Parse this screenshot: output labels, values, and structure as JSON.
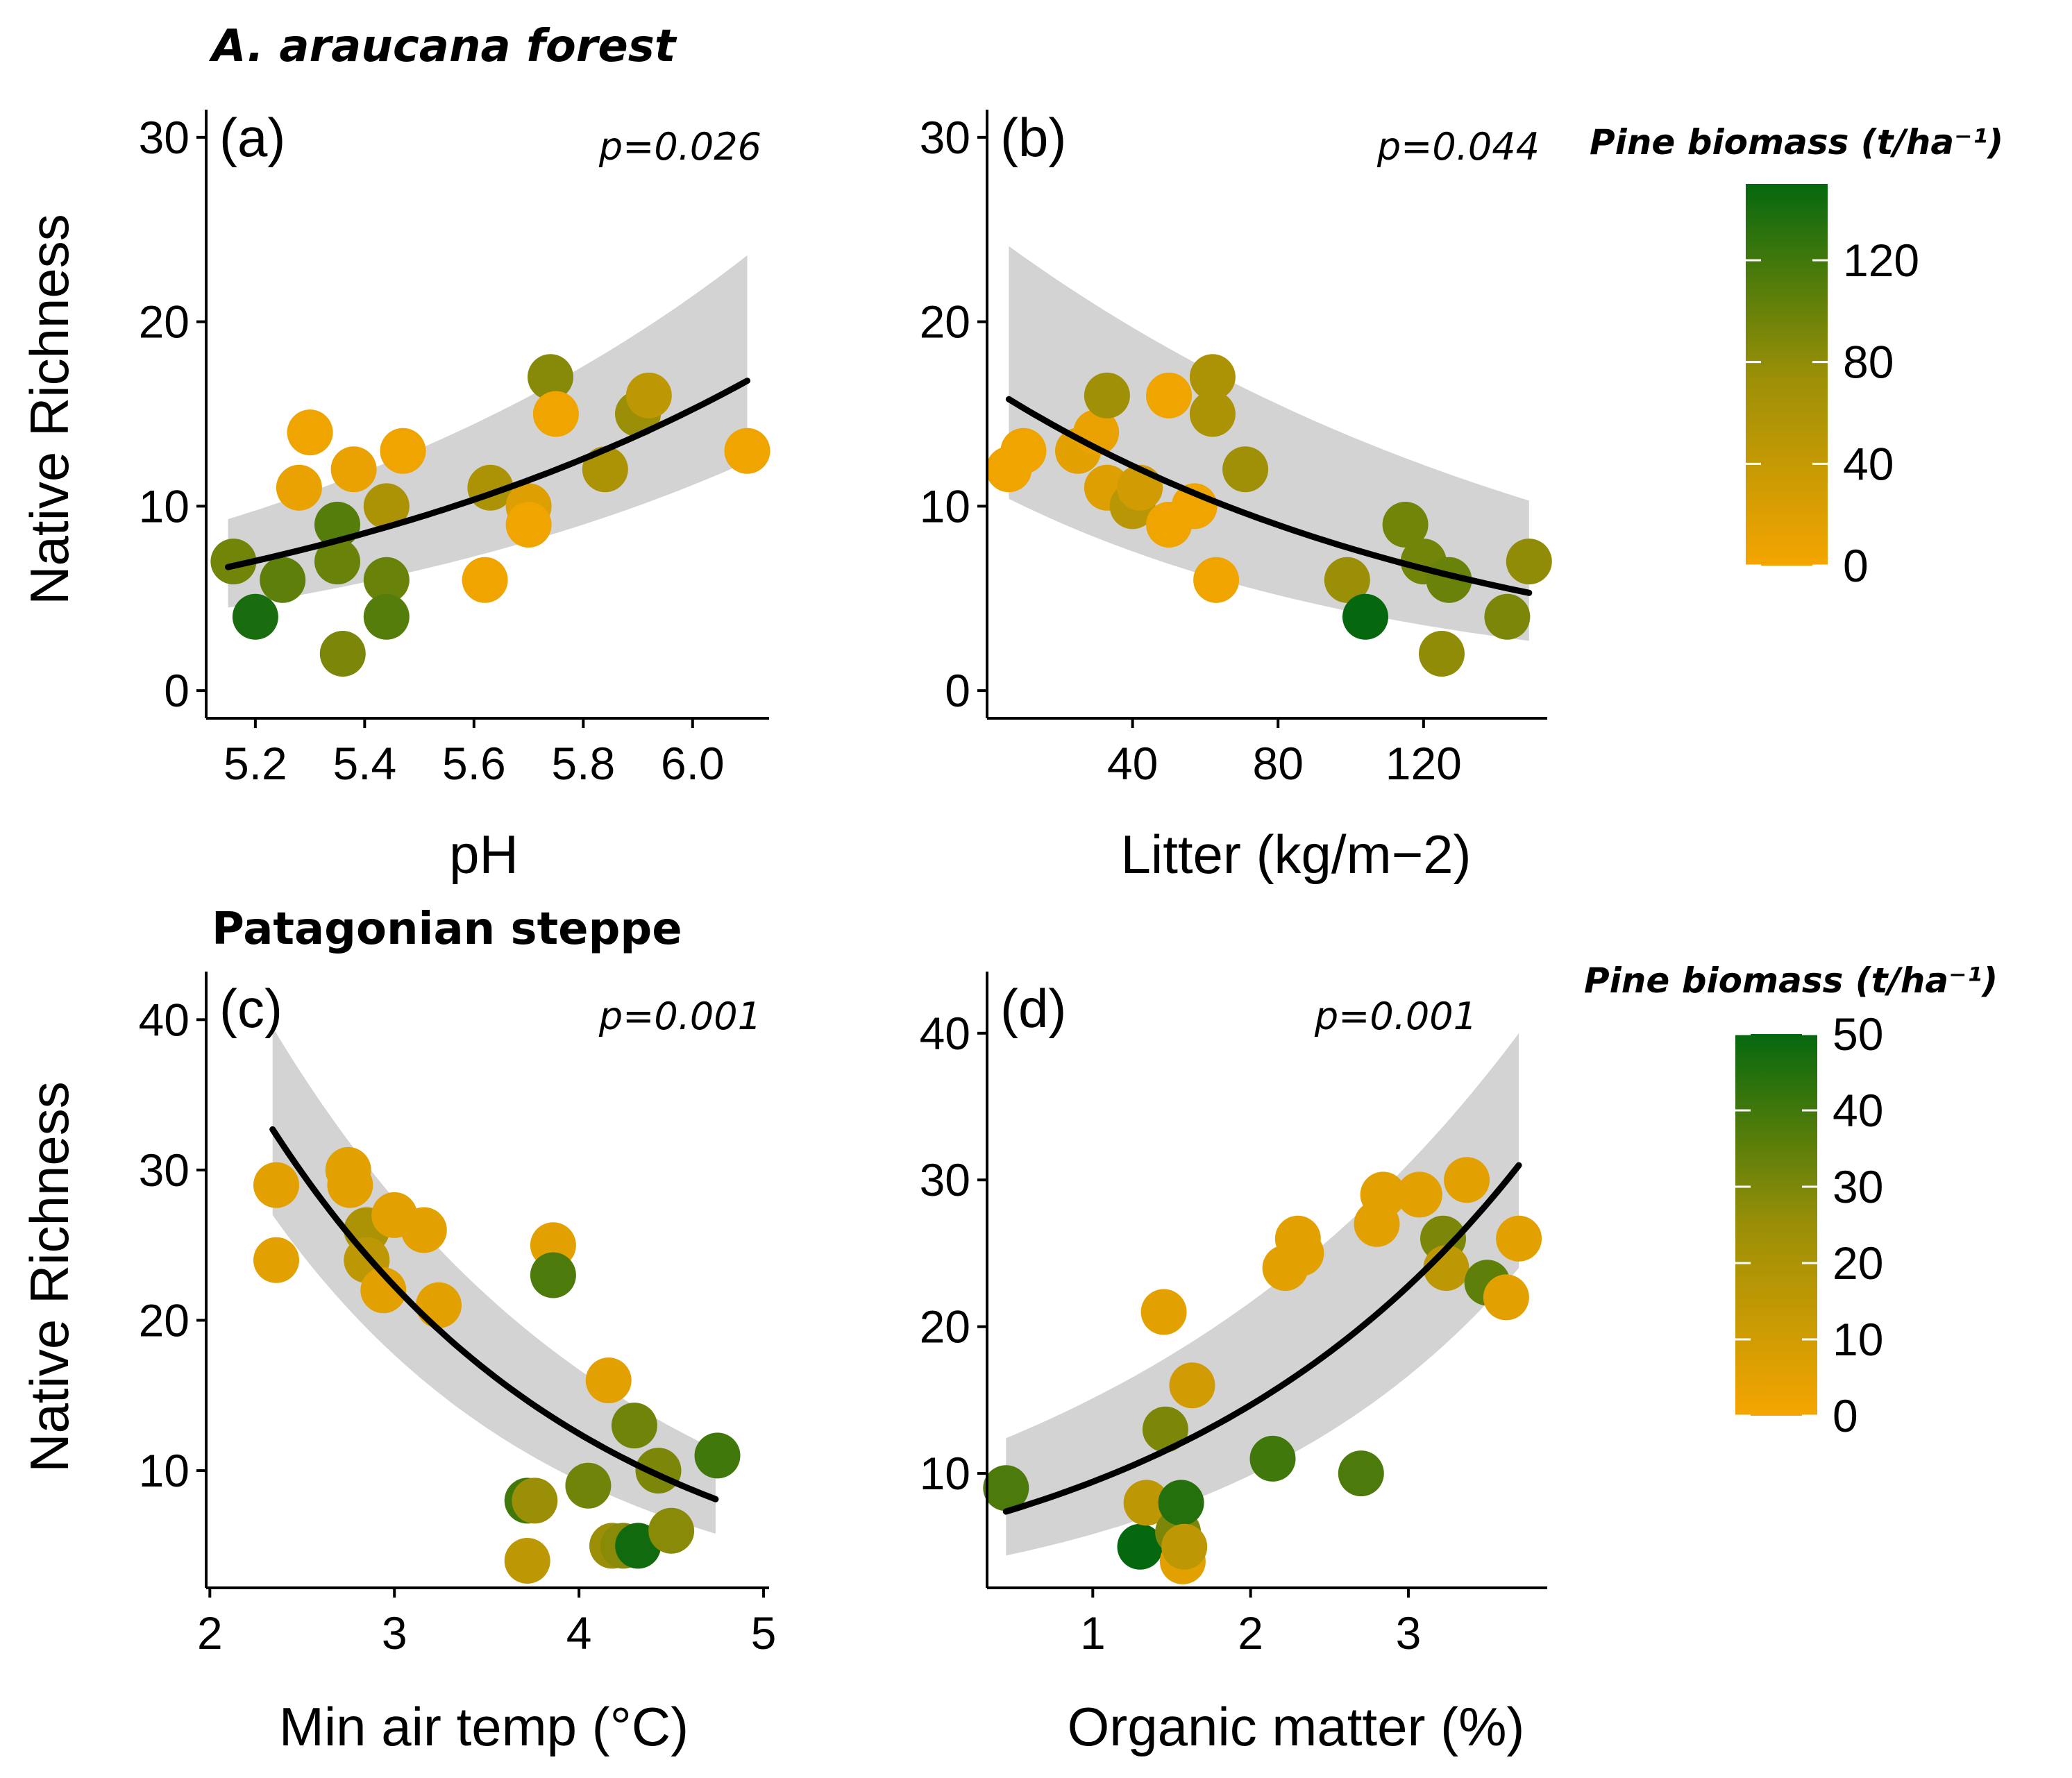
{
  "colors": {
    "low": "#f5a500",
    "mid": "#9a8f07",
    "high": "#05680f",
    "ribbon": "#d3d3d3",
    "line": "#000000"
  },
  "legends": [
    {
      "title": "Pine biomass (t/ha⁻¹)",
      "min": 0,
      "max": 150,
      "ticks": [
        0,
        40,
        80,
        120
      ]
    },
    {
      "title": "Pine biomass (t/ha⁻¹)",
      "min": 0,
      "max": 50,
      "ticks": [
        0,
        10,
        20,
        30,
        40,
        50
      ]
    }
  ],
  "chart_data": [
    {
      "type": "scatter",
      "section_title": "A. araucana forest",
      "panel": "(a)",
      "p_value": "p=0.026",
      "xlabel": "pH",
      "ylabel": "Native Richness",
      "xlim": [
        5.11,
        6.14
      ],
      "ylim": [
        -1.5,
        31.5
      ],
      "xticks": [
        5.2,
        5.4,
        5.6,
        5.8,
        6.0
      ],
      "xtick_labels": [
        "5.2",
        "5.4",
        "5.6",
        "5.8",
        "6.0"
      ],
      "yticks": [
        0,
        10,
        20,
        30
      ],
      "legend": 0,
      "points": [
        {
          "x": 5.16,
          "y": 7,
          "c": 95
        },
        {
          "x": 5.2,
          "y": 4,
          "c": 140
        },
        {
          "x": 5.25,
          "y": 6,
          "c": 105
        },
        {
          "x": 5.28,
          "y": 11,
          "c": 10
        },
        {
          "x": 5.3,
          "y": 14,
          "c": 5
        },
        {
          "x": 5.35,
          "y": 9,
          "c": 110
        },
        {
          "x": 5.35,
          "y": 7,
          "c": 100
        },
        {
          "x": 5.36,
          "y": 2,
          "c": 90
        },
        {
          "x": 5.38,
          "y": 12,
          "c": 10
        },
        {
          "x": 5.44,
          "y": 10,
          "c": 60
        },
        {
          "x": 5.44,
          "y": 6,
          "c": 100
        },
        {
          "x": 5.44,
          "y": 4,
          "c": 110
        },
        {
          "x": 5.47,
          "y": 13,
          "c": 5
        },
        {
          "x": 5.62,
          "y": 6,
          "c": 5
        },
        {
          "x": 5.63,
          "y": 11,
          "c": 60
        },
        {
          "x": 5.7,
          "y": 10,
          "c": 20
        },
        {
          "x": 5.7,
          "y": 9,
          "c": 5
        },
        {
          "x": 5.74,
          "y": 17,
          "c": 85
        },
        {
          "x": 5.75,
          "y": 15,
          "c": 5
        },
        {
          "x": 5.84,
          "y": 12,
          "c": 60
        },
        {
          "x": 5.9,
          "y": 15,
          "c": 75
        },
        {
          "x": 5.92,
          "y": 16,
          "c": 45
        },
        {
          "x": 6.1,
          "y": 13,
          "c": 5
        }
      ],
      "fit": {
        "form": "exp",
        "x0": 5.15,
        "x1": 6.1,
        "y0": 6.7,
        "y1": 16.8,
        "lo0": 4.5,
        "lo1": 12.4,
        "hi0": 9.3,
        "hi1": 23.6
      }
    },
    {
      "type": "scatter",
      "panel": "(b)",
      "p_value": "p=0.044",
      "xlabel": "Litter (kg/m−2)",
      "ylabel": "",
      "xlim": [
        0,
        154
      ],
      "ylim": [
        -1.5,
        31.5
      ],
      "xticks": [
        40,
        80,
        120
      ],
      "xtick_labels": [
        "40",
        "80",
        "120"
      ],
      "yticks": [
        0,
        10,
        20,
        30
      ],
      "legend": 0,
      "points": [
        {
          "x": 6,
          "y": 12,
          "c": 5
        },
        {
          "x": 10,
          "y": 13,
          "c": 5
        },
        {
          "x": 25,
          "y": 13,
          "c": 15
        },
        {
          "x": 30,
          "y": 14,
          "c": 10
        },
        {
          "x": 33,
          "y": 16,
          "c": 70
        },
        {
          "x": 33,
          "y": 11,
          "c": 20
        },
        {
          "x": 40,
          "y": 10,
          "c": 50
        },
        {
          "x": 42,
          "y": 11,
          "c": 30
        },
        {
          "x": 50,
          "y": 16,
          "c": 5
        },
        {
          "x": 50,
          "y": 9,
          "c": 5
        },
        {
          "x": 57,
          "y": 10,
          "c": 5
        },
        {
          "x": 62,
          "y": 17,
          "c": 60
        },
        {
          "x": 62,
          "y": 15,
          "c": 60
        },
        {
          "x": 63,
          "y": 6,
          "c": 5
        },
        {
          "x": 71,
          "y": 12,
          "c": 70
        },
        {
          "x": 99,
          "y": 6,
          "c": 75
        },
        {
          "x": 104,
          "y": 4,
          "c": 150
        },
        {
          "x": 115,
          "y": 9,
          "c": 95
        },
        {
          "x": 120,
          "y": 7,
          "c": 95
        },
        {
          "x": 125,
          "y": 2,
          "c": 80
        },
        {
          "x": 127,
          "y": 6,
          "c": 100
        },
        {
          "x": 143,
          "y": 4,
          "c": 90
        },
        {
          "x": 149,
          "y": 7,
          "c": 80
        }
      ],
      "fit": {
        "form": "exp",
        "x0": 6,
        "x1": 149,
        "y0": 15.8,
        "y1": 5.3,
        "lo0": 10.4,
        "lo1": 2.7,
        "hi0": 24.1,
        "hi1": 10.3
      }
    },
    {
      "type": "scatter",
      "section_title": "Patagonian steppe",
      "panel": "(c)",
      "p_value": "p=0.001",
      "xlabel": "Min air temp (°C)",
      "ylabel": "Native Richness",
      "xlim": [
        1.98,
        5.03
      ],
      "ylim": [
        2.2,
        43.2
      ],
      "xticks": [
        2,
        3,
        4,
        5
      ],
      "xtick_labels": [
        "2",
        "3",
        "4",
        "5"
      ],
      "yticks": [
        10,
        20,
        30,
        40
      ],
      "legend": 1,
      "points": [
        {
          "x": 2.36,
          "y": 29,
          "c": 5
        },
        {
          "x": 2.36,
          "y": 24,
          "c": 5
        },
        {
          "x": 2.75,
          "y": 30,
          "c": 5
        },
        {
          "x": 2.76,
          "y": 29,
          "c": 5
        },
        {
          "x": 2.85,
          "y": 26,
          "c": 20
        },
        {
          "x": 2.85,
          "y": 24,
          "c": 15
        },
        {
          "x": 2.94,
          "y": 22,
          "c": 5
        },
        {
          "x": 3.0,
          "y": 27,
          "c": 5
        },
        {
          "x": 3.16,
          "y": 26,
          "c": 5
        },
        {
          "x": 3.24,
          "y": 21,
          "c": 5
        },
        {
          "x": 3.72,
          "y": 8,
          "c": 40
        },
        {
          "x": 3.72,
          "y": 4,
          "c": 15
        },
        {
          "x": 3.76,
          "y": 8,
          "c": 25
        },
        {
          "x": 3.86,
          "y": 25,
          "c": 5
        },
        {
          "x": 3.86,
          "y": 23,
          "c": 38
        },
        {
          "x": 4.05,
          "y": 9,
          "c": 32
        },
        {
          "x": 4.16,
          "y": 16,
          "c": 5
        },
        {
          "x": 4.18,
          "y": 5,
          "c": 25
        },
        {
          "x": 4.24,
          "y": 5,
          "c": 28
        },
        {
          "x": 4.3,
          "y": 13,
          "c": 32
        },
        {
          "x": 4.32,
          "y": 5,
          "c": 48
        },
        {
          "x": 4.43,
          "y": 10,
          "c": 30
        },
        {
          "x": 4.5,
          "y": 6,
          "c": 28
        },
        {
          "x": 4.75,
          "y": 11,
          "c": 40
        }
      ],
      "fit": {
        "form": "exp",
        "x0": 2.34,
        "x1": 4.74,
        "y0": 32.7,
        "y1": 8.1,
        "lo0": 27.0,
        "lo1": 5.8,
        "hi0": 39.5,
        "hi1": 11.4
      }
    },
    {
      "type": "scatter",
      "panel": "(d)",
      "p_value": "p=0.001",
      "xlabel": "Organic matter (%)",
      "ylabel": "",
      "xlim": [
        0.33,
        3.88
      ],
      "ylim": [
        2.2,
        44.2
      ],
      "xticks": [
        1,
        2,
        3
      ],
      "xtick_labels": [
        "1",
        "2",
        "3"
      ],
      "yticks": [
        10,
        20,
        30,
        40
      ],
      "legend": 1,
      "points": [
        {
          "x": 0.45,
          "y": 9,
          "c": 38
        },
        {
          "x": 1.3,
          "y": 5,
          "c": 50
        },
        {
          "x": 1.34,
          "y": 8,
          "c": 15
        },
        {
          "x": 1.45,
          "y": 21,
          "c": 5
        },
        {
          "x": 1.46,
          "y": 13,
          "c": 30
        },
        {
          "x": 1.54,
          "y": 6,
          "c": 30
        },
        {
          "x": 1.56,
          "y": 8,
          "c": 45
        },
        {
          "x": 1.57,
          "y": 4,
          "c": 5
        },
        {
          "x": 1.58,
          "y": 5,
          "c": 15
        },
        {
          "x": 1.63,
          "y": 16,
          "c": 10
        },
        {
          "x": 2.14,
          "y": 11,
          "c": 40
        },
        {
          "x": 2.22,
          "y": 24,
          "c": 5
        },
        {
          "x": 2.3,
          "y": 26,
          "c": 5
        },
        {
          "x": 2.32,
          "y": 25,
          "c": 5
        },
        {
          "x": 2.7,
          "y": 10,
          "c": 38
        },
        {
          "x": 2.8,
          "y": 27,
          "c": 5
        },
        {
          "x": 2.84,
          "y": 29,
          "c": 5
        },
        {
          "x": 3.07,
          "y": 29,
          "c": 5
        },
        {
          "x": 3.22,
          "y": 26,
          "c": 30
        },
        {
          "x": 3.24,
          "y": 24,
          "c": 15
        },
        {
          "x": 3.37,
          "y": 30,
          "c": 5
        },
        {
          "x": 3.5,
          "y": 23,
          "c": 35
        },
        {
          "x": 3.62,
          "y": 22,
          "c": 5
        },
        {
          "x": 3.7,
          "y": 26,
          "c": 5
        }
      ],
      "fit": {
        "form": "exp",
        "x0": 0.45,
        "x1": 3.7,
        "y0": 7.4,
        "y1": 31.0,
        "lo0": 4.4,
        "lo1": 24.0,
        "hi0": 12.4,
        "hi1": 40.0
      }
    }
  ]
}
